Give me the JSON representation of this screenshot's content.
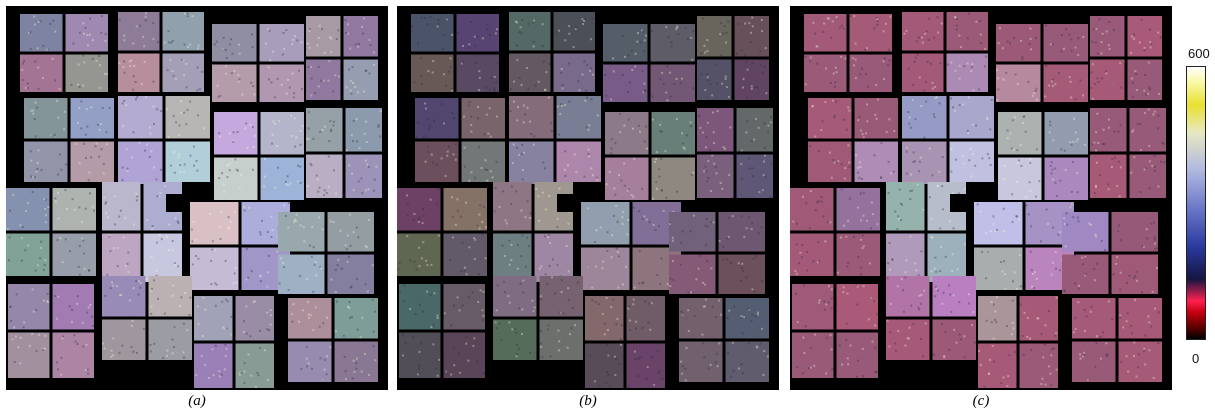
{
  "panels": [
    {
      "id": "a",
      "caption": "(a)"
    },
    {
      "id": "b",
      "caption": "(b)"
    },
    {
      "id": "c",
      "caption": "(c)"
    }
  ],
  "colorbar": {
    "max_label": "600",
    "min_label": "0"
  }
}
